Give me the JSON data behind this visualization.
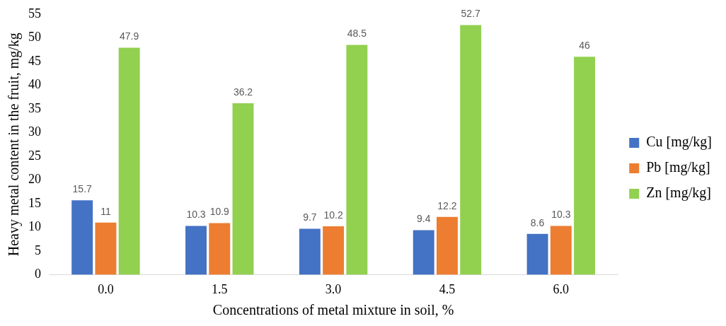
{
  "chart_data": {
    "type": "bar",
    "xlabel": "Concentrations of metal mixture in soil, %",
    "ylabel": "Heavy metal content in the fruit, mg/kg",
    "categories": [
      "0.0",
      "1.5",
      "3.0",
      "4.5",
      "6.0"
    ],
    "series": [
      {
        "name": "Cu [mg/kg]",
        "color": "#4472c4",
        "values": [
          15.7,
          10.3,
          9.7,
          9.4,
          8.6
        ]
      },
      {
        "name": "Pb [mg/kg]",
        "color": "#ed7d31",
        "values": [
          11,
          10.9,
          10.2,
          12.2,
          10.3
        ]
      },
      {
        "name": "Zn [mg/kg]",
        "color": "#92d050",
        "values": [
          47.9,
          36.2,
          48.5,
          52.7,
          46
        ]
      }
    ],
    "ylim": [
      0,
      55
    ],
    "yticks": [
      0,
      5,
      10,
      15,
      20,
      25,
      30,
      35,
      40,
      45,
      50,
      55
    ],
    "grid": false,
    "legend": "right",
    "data_labels": true
  }
}
